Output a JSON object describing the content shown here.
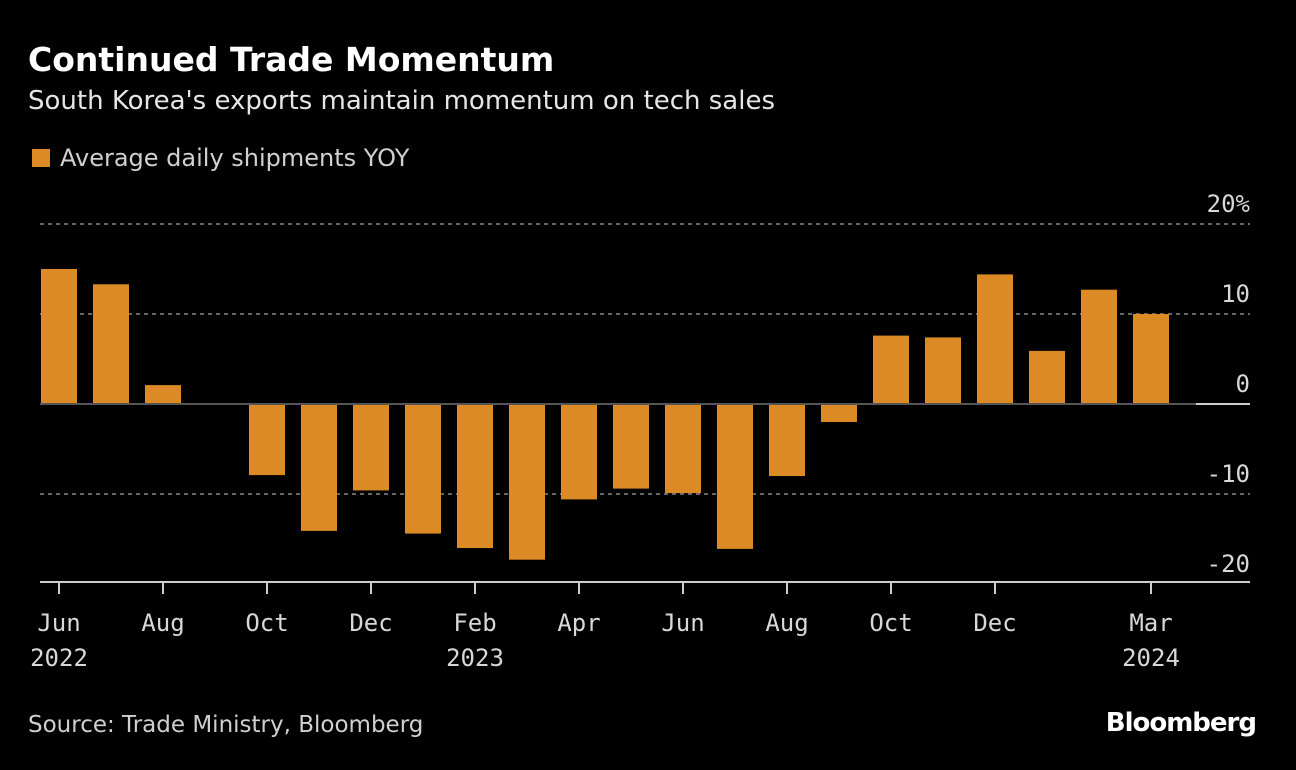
{
  "chart_data": {
    "type": "bar",
    "title": "Continued Trade Momentum",
    "subtitle": "South Korea's exports maintain momentum on tech sales",
    "legend": [
      "Average daily shipments YOY"
    ],
    "legend_placement": "top-left",
    "ylabel": "",
    "ylim": [
      -20,
      20
    ],
    "y_ticks": [
      {
        "v": 20,
        "label": "20%"
      },
      {
        "v": 10,
        "label": "10"
      },
      {
        "v": 0,
        "label": "0"
      },
      {
        "v": -10,
        "label": "-10"
      },
      {
        "v": -20,
        "label": "-20"
      }
    ],
    "categories": [
      "2022-06",
      "2022-07",
      "2022-08",
      "2022-09",
      "2022-10",
      "2022-11",
      "2022-12",
      "2023-01",
      "2023-02",
      "2023-03",
      "2023-04",
      "2023-05",
      "2023-06",
      "2023-07",
      "2023-08",
      "2023-09",
      "2023-10",
      "2023-11",
      "2023-12",
      "2024-01",
      "2024-02",
      "2024-03"
    ],
    "series": [
      {
        "name": "Average daily shipments YOY",
        "color": "#dc8a25",
        "values": [
          15.0,
          13.3,
          2.1,
          0.1,
          -7.9,
          -14.1,
          -9.6,
          -14.4,
          -16.0,
          -17.3,
          -10.6,
          -9.4,
          -9.9,
          -16.1,
          -8.0,
          -2.0,
          7.6,
          7.4,
          14.4,
          5.9,
          12.7,
          10.0
        ]
      }
    ],
    "x_ticks": [
      {
        "i": 0,
        "label": "Jun",
        "year": "2022"
      },
      {
        "i": 2,
        "label": "Aug"
      },
      {
        "i": 4,
        "label": "Oct"
      },
      {
        "i": 6,
        "label": "Dec"
      },
      {
        "i": 8,
        "label": "Feb",
        "year": "2023"
      },
      {
        "i": 10,
        "label": "Apr"
      },
      {
        "i": 12,
        "label": "Jun"
      },
      {
        "i": 14,
        "label": "Aug"
      },
      {
        "i": 16,
        "label": "Oct"
      },
      {
        "i": 18,
        "label": "Dec"
      },
      {
        "i": 21,
        "label": "Mar",
        "year": "2024"
      }
    ],
    "grid": true
  },
  "source": "Source: Trade Ministry, Bloomberg",
  "brand": "Bloomberg"
}
